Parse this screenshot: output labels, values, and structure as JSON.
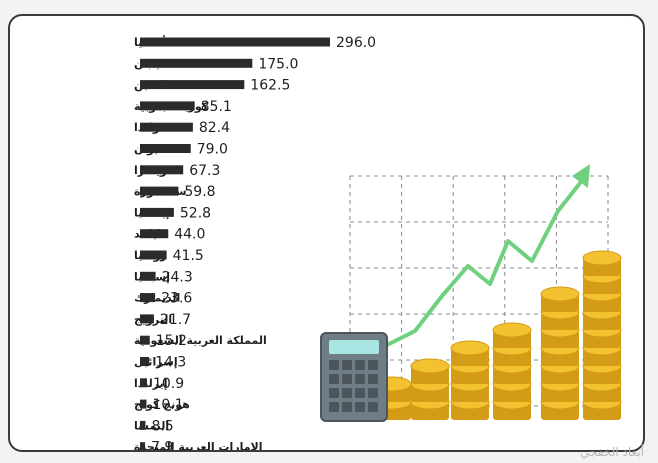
{
  "chart_data": {
    "type": "bar",
    "orientation": "horizontal",
    "categories": [
      "ألمانيا",
      "اليابان",
      "الصين",
      "كوريا الجنوبية",
      "هولندا",
      "تايوان",
      "سويسرا",
      "سنغافورة",
      "إيطاليا",
      "تايلاند",
      "روسيا",
      "إسبانيا",
      "الدنمارك",
      "النرويج",
      "المملكة العربية السعودية",
      "إسرائيل",
      "إيرلندا",
      "هونج كونج",
      "النمسا",
      "الإمارات العربية المتحدة"
    ],
    "values": [
      296.0,
      175.0,
      162.5,
      85.1,
      82.4,
      79.0,
      67.3,
      59.8,
      52.8,
      44.0,
      41.5,
      24.3,
      23.6,
      21.7,
      15.2,
      14.3,
      10.9,
      10.1,
      8.5,
      7.9
    ],
    "value_labels": [
      "296.0",
      "175.0",
      "162.5",
      "85.1",
      "82.4",
      "79.0",
      "67.3",
      "59.8",
      "52.8",
      "44.0",
      "41.5",
      "24.3",
      "23.6",
      "21.7",
      "15.2",
      "14.3",
      "10.9",
      "10.1",
      "8.5",
      "7.9"
    ],
    "title": "",
    "xlabel": "",
    "ylabel": "",
    "grid": false,
    "legend": "none",
    "colors": {
      "bar": "#2b2b2b",
      "label": "#1f1f1f",
      "coin": "#f2c230",
      "coin_edge": "#d49c16",
      "arrow": "#6fd07f",
      "grid": "#8a8a8a",
      "calculator": "#6f7d86"
    },
    "decoration": {
      "illustration": "rising coin stacks with green arrow and calculator",
      "coin_stack_heights": [
        2,
        3,
        4,
        5,
        7,
        9
      ]
    }
  },
  "watermark": "أبعاد الخفجي"
}
